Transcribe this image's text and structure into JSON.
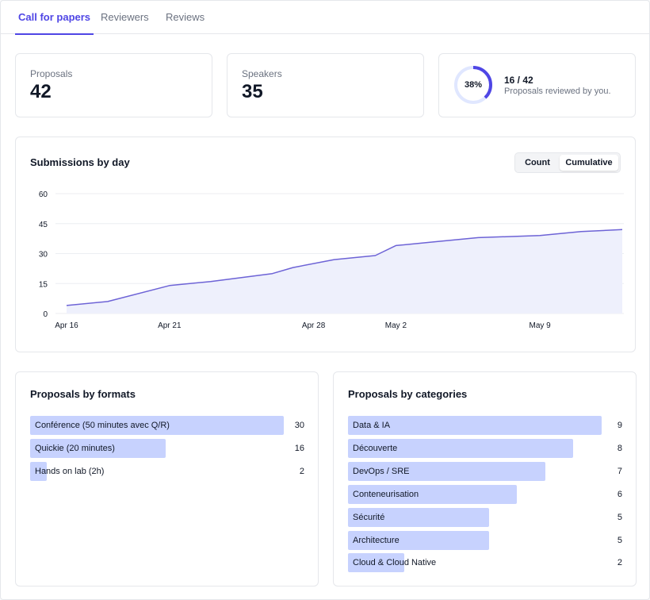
{
  "tabs": [
    {
      "label": "Call for papers",
      "active": true
    },
    {
      "label": "Reviewers",
      "active": false
    },
    {
      "label": "Reviews",
      "active": false
    }
  ],
  "stats": {
    "proposals": {
      "label": "Proposals",
      "value": "42"
    },
    "speakers": {
      "label": "Speakers",
      "value": "35"
    },
    "review": {
      "percent_label": "38%",
      "progress": 0.38,
      "count": "16 / 42",
      "text": "Proposals reviewed by you."
    }
  },
  "colors": {
    "accent": "#4f46e5",
    "line": "#6d63d6",
    "area": "#eef0fc",
    "bar": "#c7d2fe",
    "ring_track": "#e0e7ff"
  },
  "submissions": {
    "title": "Submissions by day",
    "toggle": {
      "count": "Count",
      "cumulative": "Cumulative",
      "selected": "cumulative"
    }
  },
  "chart_data": {
    "type": "area",
    "title": "Submissions by day",
    "xlabel": "",
    "ylabel": "",
    "ylim": [
      0,
      60
    ],
    "yticks": [
      0,
      15,
      30,
      45,
      60
    ],
    "xlim": [
      "2024-04-16",
      "2024-05-13"
    ],
    "xticks": [
      {
        "date": "2024-04-16",
        "label": "Apr 16"
      },
      {
        "date": "2024-04-21",
        "label": "Apr 21"
      },
      {
        "date": "2024-04-28",
        "label": "Apr 28"
      },
      {
        "date": "2024-05-02",
        "label": "May 2"
      },
      {
        "date": "2024-05-09",
        "label": "May 9"
      }
    ],
    "grid": true,
    "series": [
      {
        "values": [
          {
            "x": "2024-04-16",
            "y": 4
          },
          {
            "x": "2024-04-18",
            "y": 6
          },
          {
            "x": "2024-04-21",
            "y": 14
          },
          {
            "x": "2024-04-23",
            "y": 16
          },
          {
            "x": "2024-04-26",
            "y": 20
          },
          {
            "x": "2024-04-27",
            "y": 23
          },
          {
            "x": "2024-04-29",
            "y": 27
          },
          {
            "x": "2024-05-01",
            "y": 29
          },
          {
            "x": "2024-05-02",
            "y": 34
          },
          {
            "x": "2024-05-04",
            "y": 36
          },
          {
            "x": "2024-05-06",
            "y": 38
          },
          {
            "x": "2024-05-09",
            "y": 39
          },
          {
            "x": "2024-05-11",
            "y": 41
          },
          {
            "x": "2024-05-13",
            "y": 42
          }
        ]
      }
    ]
  },
  "formats": {
    "title": "Proposals by formats",
    "items": [
      {
        "label": "Conférence (50 minutes avec Q/R)",
        "value": 30
      },
      {
        "label": "Quickie (20 minutes)",
        "value": 16
      },
      {
        "label": "Hands on lab (2h)",
        "value": 2
      }
    ]
  },
  "categories": {
    "title": "Proposals by categories",
    "items": [
      {
        "label": "Data & IA",
        "value": 9
      },
      {
        "label": "Découverte",
        "value": 8
      },
      {
        "label": "DevOps / SRE",
        "value": 7
      },
      {
        "label": "Conteneurisation",
        "value": 6
      },
      {
        "label": "Sécurité",
        "value": 5
      },
      {
        "label": "Architecture",
        "value": 5
      },
      {
        "label": "Cloud & Cloud Native",
        "value": 2
      }
    ]
  }
}
